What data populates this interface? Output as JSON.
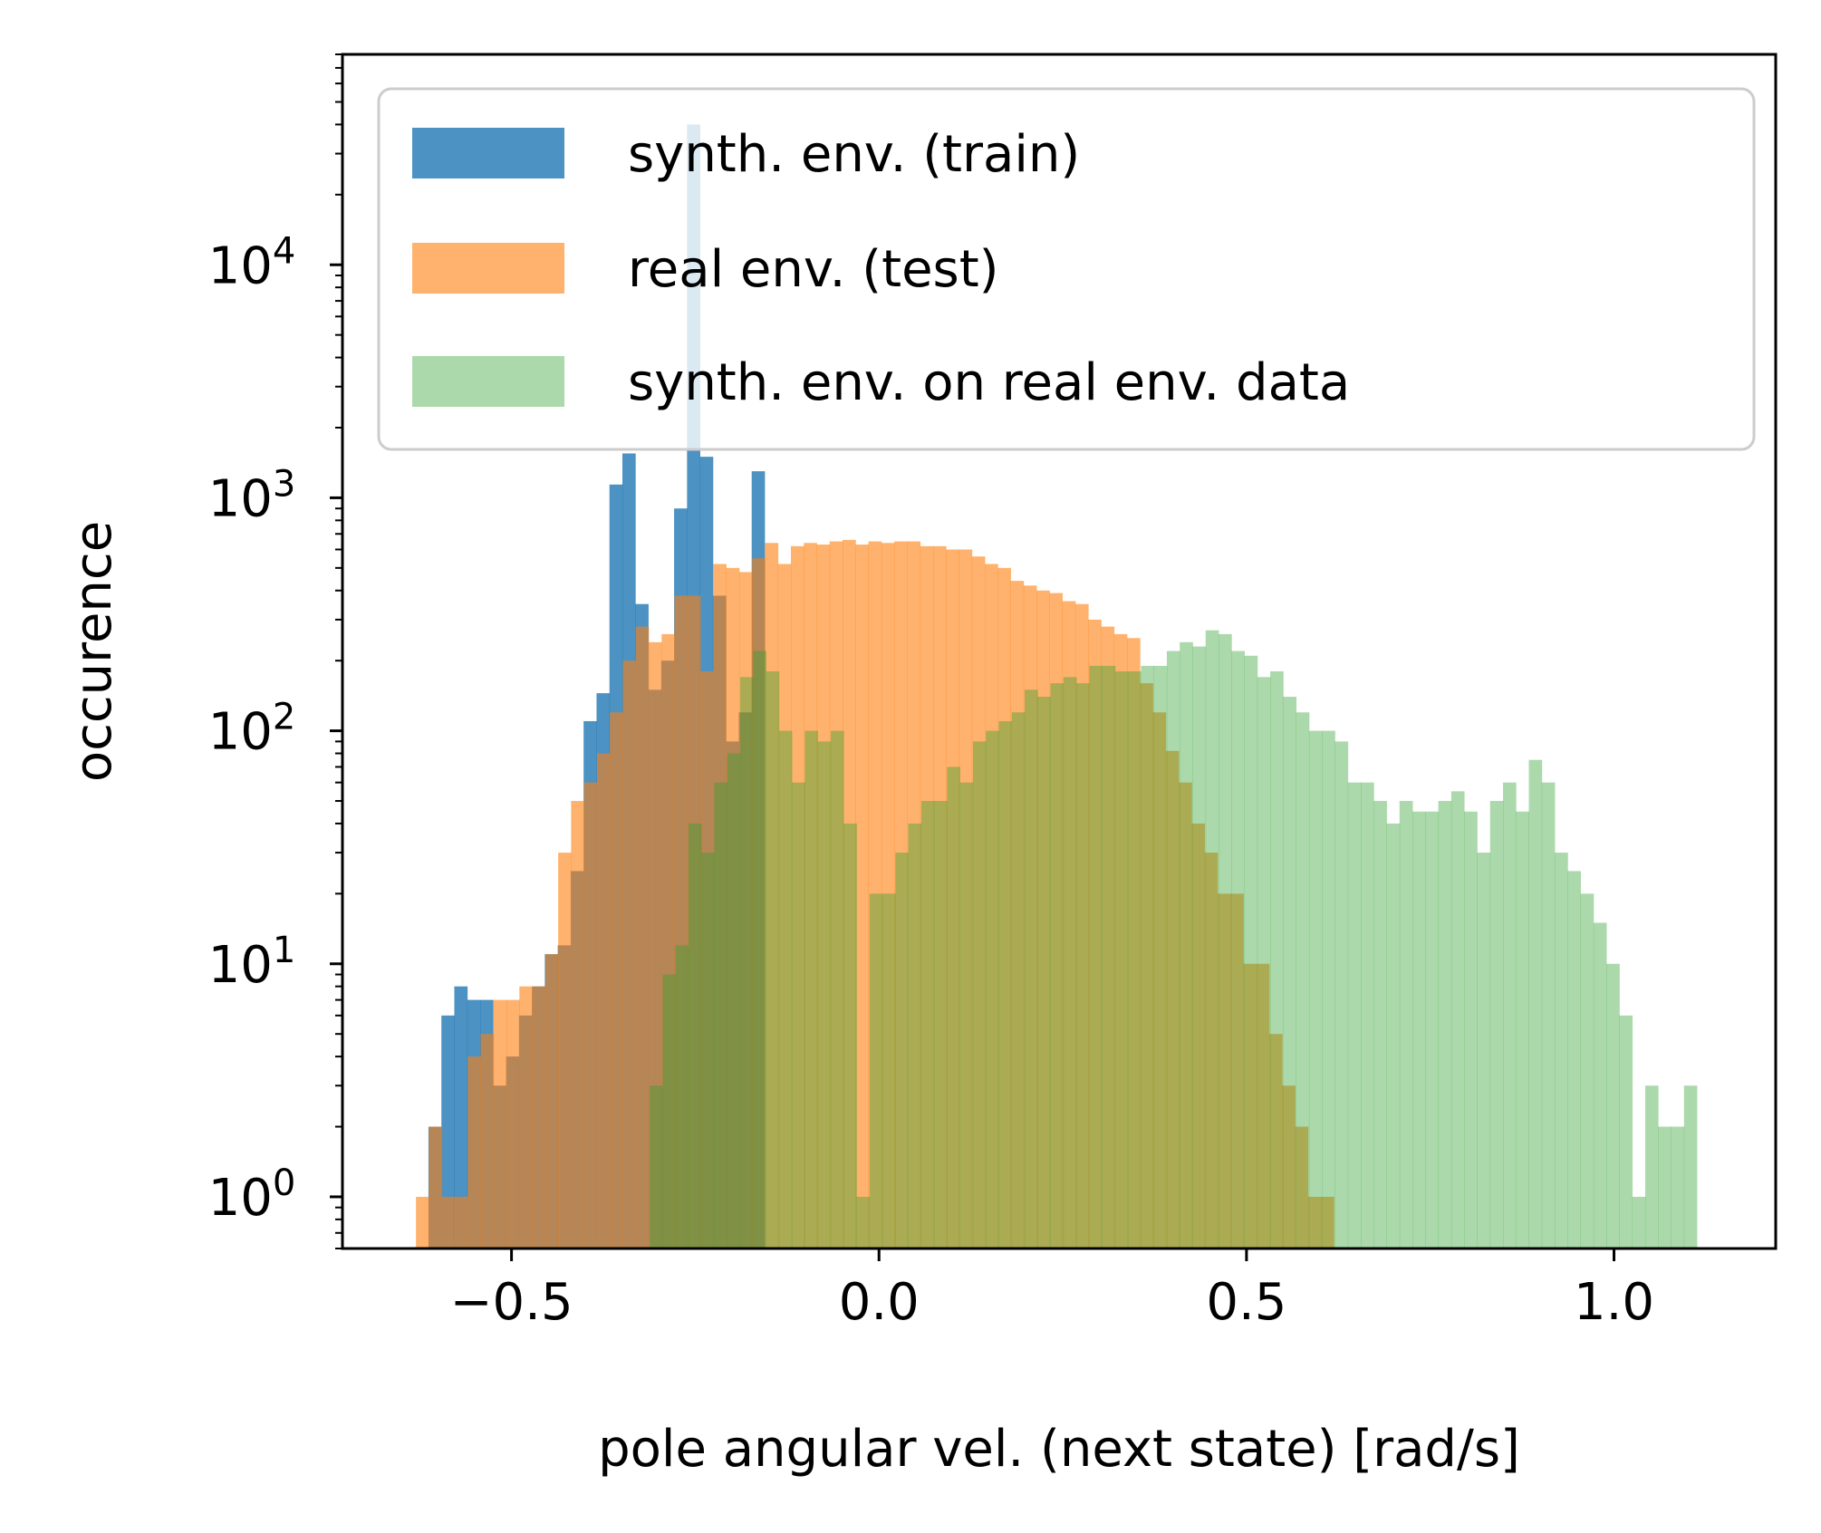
{
  "chart_data": {
    "type": "histogram",
    "xlabel": "pole angular vel. (next state) [rad/s]",
    "ylabel": "occurence",
    "xlim": [
      -0.73,
      1.22
    ],
    "ylim": [
      0.6,
      80000
    ],
    "yscale": "log",
    "x_ticks": [
      {
        "value": -0.5,
        "label": "−0.5"
      },
      {
        "value": 0.0,
        "label": "0.0"
      },
      {
        "value": 0.5,
        "label": "0.5"
      },
      {
        "value": 1.0,
        "label": "1.0"
      }
    ],
    "y_ticks": [
      {
        "value": 1,
        "base": "10",
        "exp": "0"
      },
      {
        "value": 10,
        "base": "10",
        "exp": "1"
      },
      {
        "value": 100,
        "base": "10",
        "exp": "2"
      },
      {
        "value": 1000,
        "base": "10",
        "exp": "3"
      },
      {
        "value": 10000,
        "base": "10",
        "exp": "4"
      }
    ],
    "grid": false,
    "legend_position": "top-right",
    "series": [
      {
        "name": "synth. env. (train)",
        "color": "#1f77b4",
        "opacity": 0.8,
        "bin_start": -0.613,
        "bin_width": 0.01759,
        "counts": [
          2,
          6,
          8,
          7,
          7,
          3,
          4,
          6,
          8,
          11,
          12,
          25,
          110,
          145,
          1140,
          1550,
          350,
          150,
          200,
          900,
          40000,
          1500,
          380,
          90,
          120,
          1300
        ]
      },
      {
        "name": "real env. (test)",
        "color": "#ff7f0e",
        "opacity": 0.6,
        "bin_start": -0.63,
        "bin_width": 0.01759,
        "counts": [
          1,
          2,
          1,
          1,
          4,
          5,
          7,
          7,
          8,
          8,
          11,
          30,
          50,
          60,
          80,
          120,
          200,
          280,
          240,
          260,
          380,
          380,
          180,
          520,
          500,
          480,
          550,
          640,
          520,
          620,
          640,
          630,
          650,
          660,
          630,
          650,
          640,
          650,
          650,
          620,
          620,
          600,
          600,
          560,
          520,
          500,
          440,
          420,
          400,
          390,
          360,
          350,
          300,
          280,
          260,
          250,
          160,
          120,
          82,
          60,
          40,
          30,
          20,
          20,
          10,
          10,
          5,
          3,
          2,
          1,
          1
        ]
      },
      {
        "name": "synth. env. on real env. data",
        "color": "#2ca02c",
        "opacity": 0.4,
        "bin_start": -0.312,
        "bin_width": 0.01759,
        "counts": [
          3,
          9,
          12,
          40,
          30,
          60,
          80,
          170,
          220,
          180,
          100,
          60,
          100,
          90,
          100,
          40,
          1,
          20,
          20,
          30,
          40,
          50,
          50,
          70,
          60,
          90,
          100,
          110,
          120,
          150,
          140,
          160,
          170,
          160,
          190,
          190,
          180,
          180,
          190,
          190,
          220,
          240,
          230,
          270,
          260,
          220,
          210,
          170,
          180,
          140,
          120,
          100,
          100,
          90,
          60,
          60,
          50,
          40,
          50,
          45,
          45,
          50,
          55,
          45,
          30,
          50,
          60,
          45,
          75,
          60,
          30,
          25,
          20,
          15,
          10,
          6,
          1,
          3,
          2,
          2,
          3
        ]
      }
    ]
  }
}
